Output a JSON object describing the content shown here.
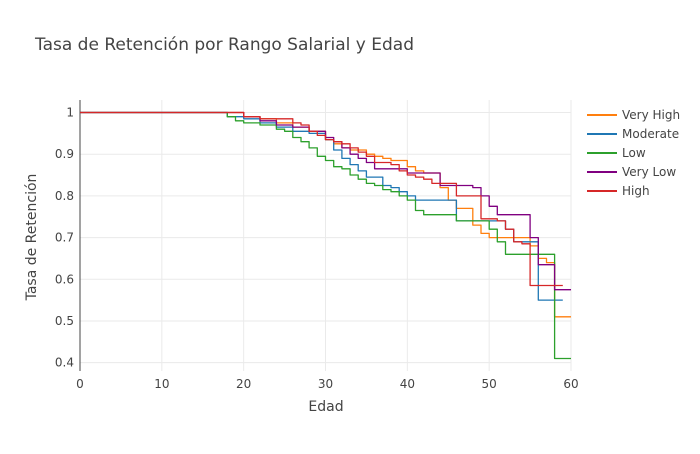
{
  "chart_data": {
    "type": "line",
    "title": "Tasa de Retención por Rango Salarial y Edad",
    "xlabel": "Edad",
    "ylabel": "Tasa de Retención",
    "xlim": [
      0,
      60
    ],
    "ylim": [
      0.38,
      1.03
    ],
    "x_ticks": [
      0,
      10,
      20,
      30,
      40,
      50,
      60
    ],
    "y_ticks": [
      0.4,
      0.5,
      0.6,
      0.7,
      0.8,
      0.9,
      1
    ],
    "grid": true,
    "line_shape": "step",
    "legend_position": "right",
    "series": [
      {
        "name": "Very High",
        "color": "#ff7f0e",
        "points": [
          [
            0,
            1
          ],
          [
            18,
            1
          ],
          [
            20,
            0.99
          ],
          [
            22,
            0.985
          ],
          [
            24,
            0.975
          ],
          [
            26,
            0.965
          ],
          [
            28,
            0.955
          ],
          [
            30,
            0.935
          ],
          [
            31,
            0.925
          ],
          [
            32,
            0.915
          ],
          [
            33,
            0.91
          ],
          [
            35,
            0.9
          ],
          [
            36,
            0.895
          ],
          [
            37,
            0.89
          ],
          [
            38,
            0.885
          ],
          [
            40,
            0.87
          ],
          [
            41,
            0.86
          ],
          [
            42,
            0.855
          ],
          [
            44,
            0.82
          ],
          [
            45,
            0.79
          ],
          [
            46,
            0.77
          ],
          [
            48,
            0.73
          ],
          [
            49,
            0.71
          ],
          [
            50,
            0.7
          ],
          [
            54,
            0.7
          ],
          [
            55,
            0.68
          ],
          [
            56,
            0.65
          ],
          [
            57,
            0.64
          ],
          [
            58,
            0.51
          ],
          [
            60,
            0.51
          ]
        ]
      },
      {
        "name": "Moderate",
        "color": "#1f77b4",
        "points": [
          [
            0,
            1
          ],
          [
            18,
            0.99
          ],
          [
            20,
            0.985
          ],
          [
            22,
            0.975
          ],
          [
            24,
            0.965
          ],
          [
            26,
            0.955
          ],
          [
            28,
            0.95
          ],
          [
            30,
            0.935
          ],
          [
            31,
            0.91
          ],
          [
            32,
            0.89
          ],
          [
            33,
            0.875
          ],
          [
            34,
            0.86
          ],
          [
            35,
            0.845
          ],
          [
            36,
            0.845
          ],
          [
            37,
            0.825
          ],
          [
            38,
            0.82
          ],
          [
            39,
            0.81
          ],
          [
            40,
            0.8
          ],
          [
            41,
            0.79
          ],
          [
            45,
            0.79
          ],
          [
            46,
            0.74
          ],
          [
            51,
            0.74
          ],
          [
            52,
            0.72
          ],
          [
            53,
            0.69
          ],
          [
            55,
            0.69
          ],
          [
            56,
            0.55
          ],
          [
            59,
            0.55
          ]
        ]
      },
      {
        "name": "Low",
        "color": "#2ca02c",
        "points": [
          [
            0,
            1
          ],
          [
            18,
            0.99
          ],
          [
            19,
            0.98
          ],
          [
            20,
            0.975
          ],
          [
            22,
            0.97
          ],
          [
            24,
            0.96
          ],
          [
            25,
            0.955
          ],
          [
            26,
            0.94
          ],
          [
            27,
            0.93
          ],
          [
            28,
            0.915
          ],
          [
            29,
            0.895
          ],
          [
            30,
            0.885
          ],
          [
            31,
            0.87
          ],
          [
            32,
            0.865
          ],
          [
            33,
            0.85
          ],
          [
            34,
            0.84
          ],
          [
            35,
            0.83
          ],
          [
            36,
            0.825
          ],
          [
            37,
            0.815
          ],
          [
            38,
            0.81
          ],
          [
            39,
            0.8
          ],
          [
            40,
            0.79
          ],
          [
            41,
            0.765
          ],
          [
            42,
            0.755
          ],
          [
            45,
            0.755
          ],
          [
            46,
            0.74
          ],
          [
            49,
            0.74
          ],
          [
            50,
            0.72
          ],
          [
            51,
            0.69
          ],
          [
            52,
            0.66
          ],
          [
            56,
            0.66
          ],
          [
            57,
            0.66
          ],
          [
            58,
            0.41
          ],
          [
            60,
            0.41
          ]
        ]
      },
      {
        "name": "Very Low",
        "color": "#800080",
        "points": [
          [
            0,
            1
          ],
          [
            18,
            1
          ],
          [
            20,
            0.99
          ],
          [
            22,
            0.98
          ],
          [
            24,
            0.97
          ],
          [
            26,
            0.965
          ],
          [
            28,
            0.955
          ],
          [
            30,
            0.94
          ],
          [
            31,
            0.93
          ],
          [
            32,
            0.915
          ],
          [
            33,
            0.9
          ],
          [
            34,
            0.89
          ],
          [
            35,
            0.88
          ],
          [
            36,
            0.865
          ],
          [
            39,
            0.865
          ],
          [
            40,
            0.855
          ],
          [
            42,
            0.855
          ],
          [
            44,
            0.825
          ],
          [
            46,
            0.825
          ],
          [
            48,
            0.82
          ],
          [
            49,
            0.8
          ],
          [
            50,
            0.775
          ],
          [
            51,
            0.755
          ],
          [
            54,
            0.755
          ],
          [
            55,
            0.7
          ],
          [
            56,
            0.635
          ],
          [
            57,
            0.635
          ],
          [
            58,
            0.575
          ],
          [
            60,
            0.575
          ]
        ]
      },
      {
        "name": "High",
        "color": "#d62728",
        "points": [
          [
            0,
            1
          ],
          [
            18,
            1
          ],
          [
            20,
            0.99
          ],
          [
            22,
            0.985
          ],
          [
            24,
            0.985
          ],
          [
            26,
            0.975
          ],
          [
            27,
            0.97
          ],
          [
            28,
            0.955
          ],
          [
            29,
            0.945
          ],
          [
            30,
            0.935
          ],
          [
            31,
            0.93
          ],
          [
            32,
            0.925
          ],
          [
            33,
            0.915
          ],
          [
            34,
            0.905
          ],
          [
            35,
            0.895
          ],
          [
            36,
            0.88
          ],
          [
            38,
            0.875
          ],
          [
            39,
            0.86
          ],
          [
            40,
            0.85
          ],
          [
            41,
            0.845
          ],
          [
            42,
            0.84
          ],
          [
            43,
            0.83
          ],
          [
            45,
            0.83
          ],
          [
            46,
            0.8
          ],
          [
            48,
            0.8
          ],
          [
            49,
            0.745
          ],
          [
            51,
            0.74
          ],
          [
            52,
            0.72
          ],
          [
            53,
            0.69
          ],
          [
            54,
            0.685
          ],
          [
            55,
            0.585
          ],
          [
            59,
            0.585
          ]
        ]
      }
    ]
  }
}
